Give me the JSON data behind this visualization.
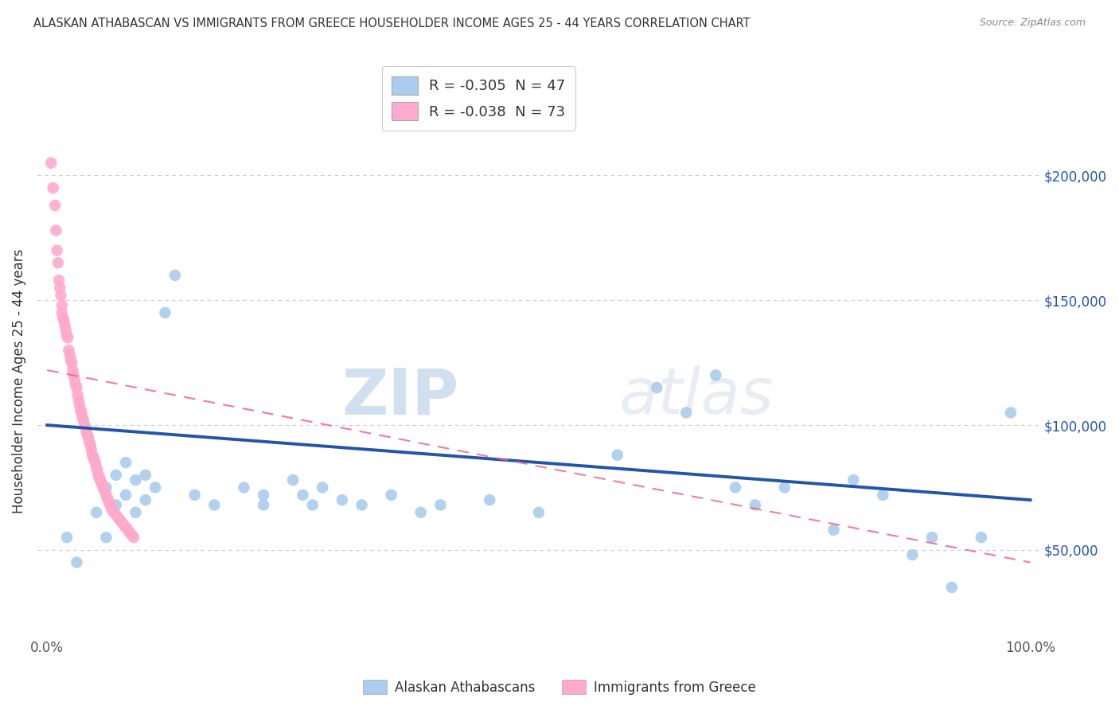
{
  "title": "ALASKAN ATHABASCAN VS IMMIGRANTS FROM GREECE HOUSEHOLDER INCOME AGES 25 - 44 YEARS CORRELATION CHART",
  "source": "Source: ZipAtlas.com",
  "ylabel": "Householder Income Ages 25 - 44 years",
  "y_ticks": [
    50000,
    100000,
    150000,
    200000
  ],
  "y_tick_labels": [
    "$50,000",
    "$100,000",
    "$150,000",
    "$200,000"
  ],
  "y_min": 15000,
  "y_max": 220000,
  "x_min": -0.01,
  "x_max": 1.01,
  "legend_r1": "R = -0.305  N = 47",
  "legend_r2": "R = -0.038  N = 73",
  "blue_color": "#aaccee",
  "pink_color": "#ffaacc",
  "blue_line_color": "#2255aa",
  "pink_line_color": "#ee6688",
  "watermark_zip": "ZIP",
  "watermark_atlas": "atlas",
  "blue_scatter_x": [
    0.02,
    0.03,
    0.05,
    0.06,
    0.06,
    0.07,
    0.07,
    0.08,
    0.08,
    0.09,
    0.09,
    0.1,
    0.1,
    0.11,
    0.12,
    0.13,
    0.15,
    0.17,
    0.2,
    0.22,
    0.22,
    0.25,
    0.26,
    0.27,
    0.28,
    0.3,
    0.32,
    0.35,
    0.38,
    0.4,
    0.45,
    0.5,
    0.58,
    0.62,
    0.65,
    0.68,
    0.7,
    0.72,
    0.75,
    0.8,
    0.82,
    0.85,
    0.88,
    0.9,
    0.92,
    0.95,
    0.98
  ],
  "blue_scatter_y": [
    55000,
    45000,
    65000,
    75000,
    55000,
    80000,
    68000,
    72000,
    85000,
    78000,
    65000,
    80000,
    70000,
    75000,
    145000,
    160000,
    72000,
    68000,
    75000,
    72000,
    68000,
    78000,
    72000,
    68000,
    75000,
    70000,
    68000,
    72000,
    65000,
    68000,
    70000,
    65000,
    88000,
    115000,
    105000,
    120000,
    75000,
    68000,
    75000,
    58000,
    78000,
    72000,
    48000,
    55000,
    35000,
    55000,
    105000
  ],
  "pink_scatter_x": [
    0.004,
    0.006,
    0.008,
    0.009,
    0.01,
    0.011,
    0.012,
    0.013,
    0.014,
    0.015,
    0.015,
    0.016,
    0.017,
    0.018,
    0.019,
    0.02,
    0.021,
    0.022,
    0.023,
    0.024,
    0.025,
    0.026,
    0.027,
    0.028,
    0.029,
    0.03,
    0.031,
    0.032,
    0.033,
    0.034,
    0.035,
    0.036,
    0.037,
    0.038,
    0.039,
    0.04,
    0.041,
    0.042,
    0.043,
    0.044,
    0.045,
    0.046,
    0.047,
    0.048,
    0.049,
    0.05,
    0.051,
    0.052,
    0.053,
    0.054,
    0.055,
    0.056,
    0.057,
    0.058,
    0.059,
    0.06,
    0.061,
    0.062,
    0.063,
    0.064,
    0.065,
    0.066,
    0.068,
    0.07,
    0.072,
    0.074,
    0.076,
    0.078,
    0.08,
    0.082,
    0.084,
    0.086,
    0.088
  ],
  "pink_scatter_y": [
    205000,
    195000,
    188000,
    178000,
    170000,
    165000,
    158000,
    155000,
    152000,
    148000,
    145000,
    143000,
    142000,
    140000,
    138000,
    136000,
    135000,
    130000,
    128000,
    126000,
    125000,
    122000,
    120000,
    118000,
    116000,
    115000,
    112000,
    110000,
    108000,
    106000,
    105000,
    103000,
    102000,
    100000,
    99000,
    97000,
    96000,
    95000,
    93000,
    92000,
    90000,
    88000,
    87000,
    86000,
    85000,
    83000,
    82000,
    80000,
    79000,
    78000,
    77000,
    76000,
    75000,
    74000,
    73000,
    72000,
    71000,
    70000,
    69000,
    68000,
    67000,
    66000,
    65000,
    64000,
    63000,
    62000,
    61000,
    60000,
    59000,
    58000,
    57000,
    56000,
    55000
  ],
  "blue_line_x0": 0.0,
  "blue_line_y0": 100000,
  "blue_line_x1": 1.0,
  "blue_line_y1": 70000,
  "pink_line_x0": 0.0,
  "pink_line_y0": 122000,
  "pink_line_x1": 1.0,
  "pink_line_y1": 45000
}
